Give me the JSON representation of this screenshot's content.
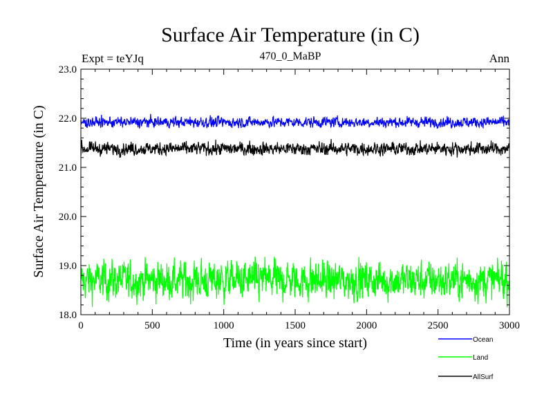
{
  "chart_data": {
    "type": "line",
    "title": "Surface Air Temperature (in C)",
    "subtitle": "470_0_MaBP",
    "left_label": "Expt = teYJq",
    "right_label": "Ann",
    "xlabel": "Time (in years since start)",
    "ylabel": "Surface Air Temperature (in C)",
    "xlim": [
      0,
      3000
    ],
    "ylim": [
      18.0,
      23.0
    ],
    "x_ticks": [
      "0",
      "500",
      "1000",
      "1500",
      "2000",
      "2500",
      "3000"
    ],
    "y_ticks": [
      "18.0",
      "19.0",
      "20.0",
      "21.0",
      "22.0",
      "23.0"
    ],
    "legend_position": "bottom-right",
    "series": [
      {
        "name": "Ocean",
        "color": "#0000ff",
        "mean": 21.92,
        "noise": 0.05,
        "min": 21.8,
        "max": 22.12
      },
      {
        "name": "Land",
        "color": "#00ff00",
        "mean": 18.7,
        "noise": 0.18,
        "min": 18.05,
        "max": 19.18
      },
      {
        "name": "AllSurf",
        "color": "#000000",
        "mean": 21.38,
        "noise": 0.06,
        "min": 21.18,
        "max": 21.58
      }
    ]
  }
}
